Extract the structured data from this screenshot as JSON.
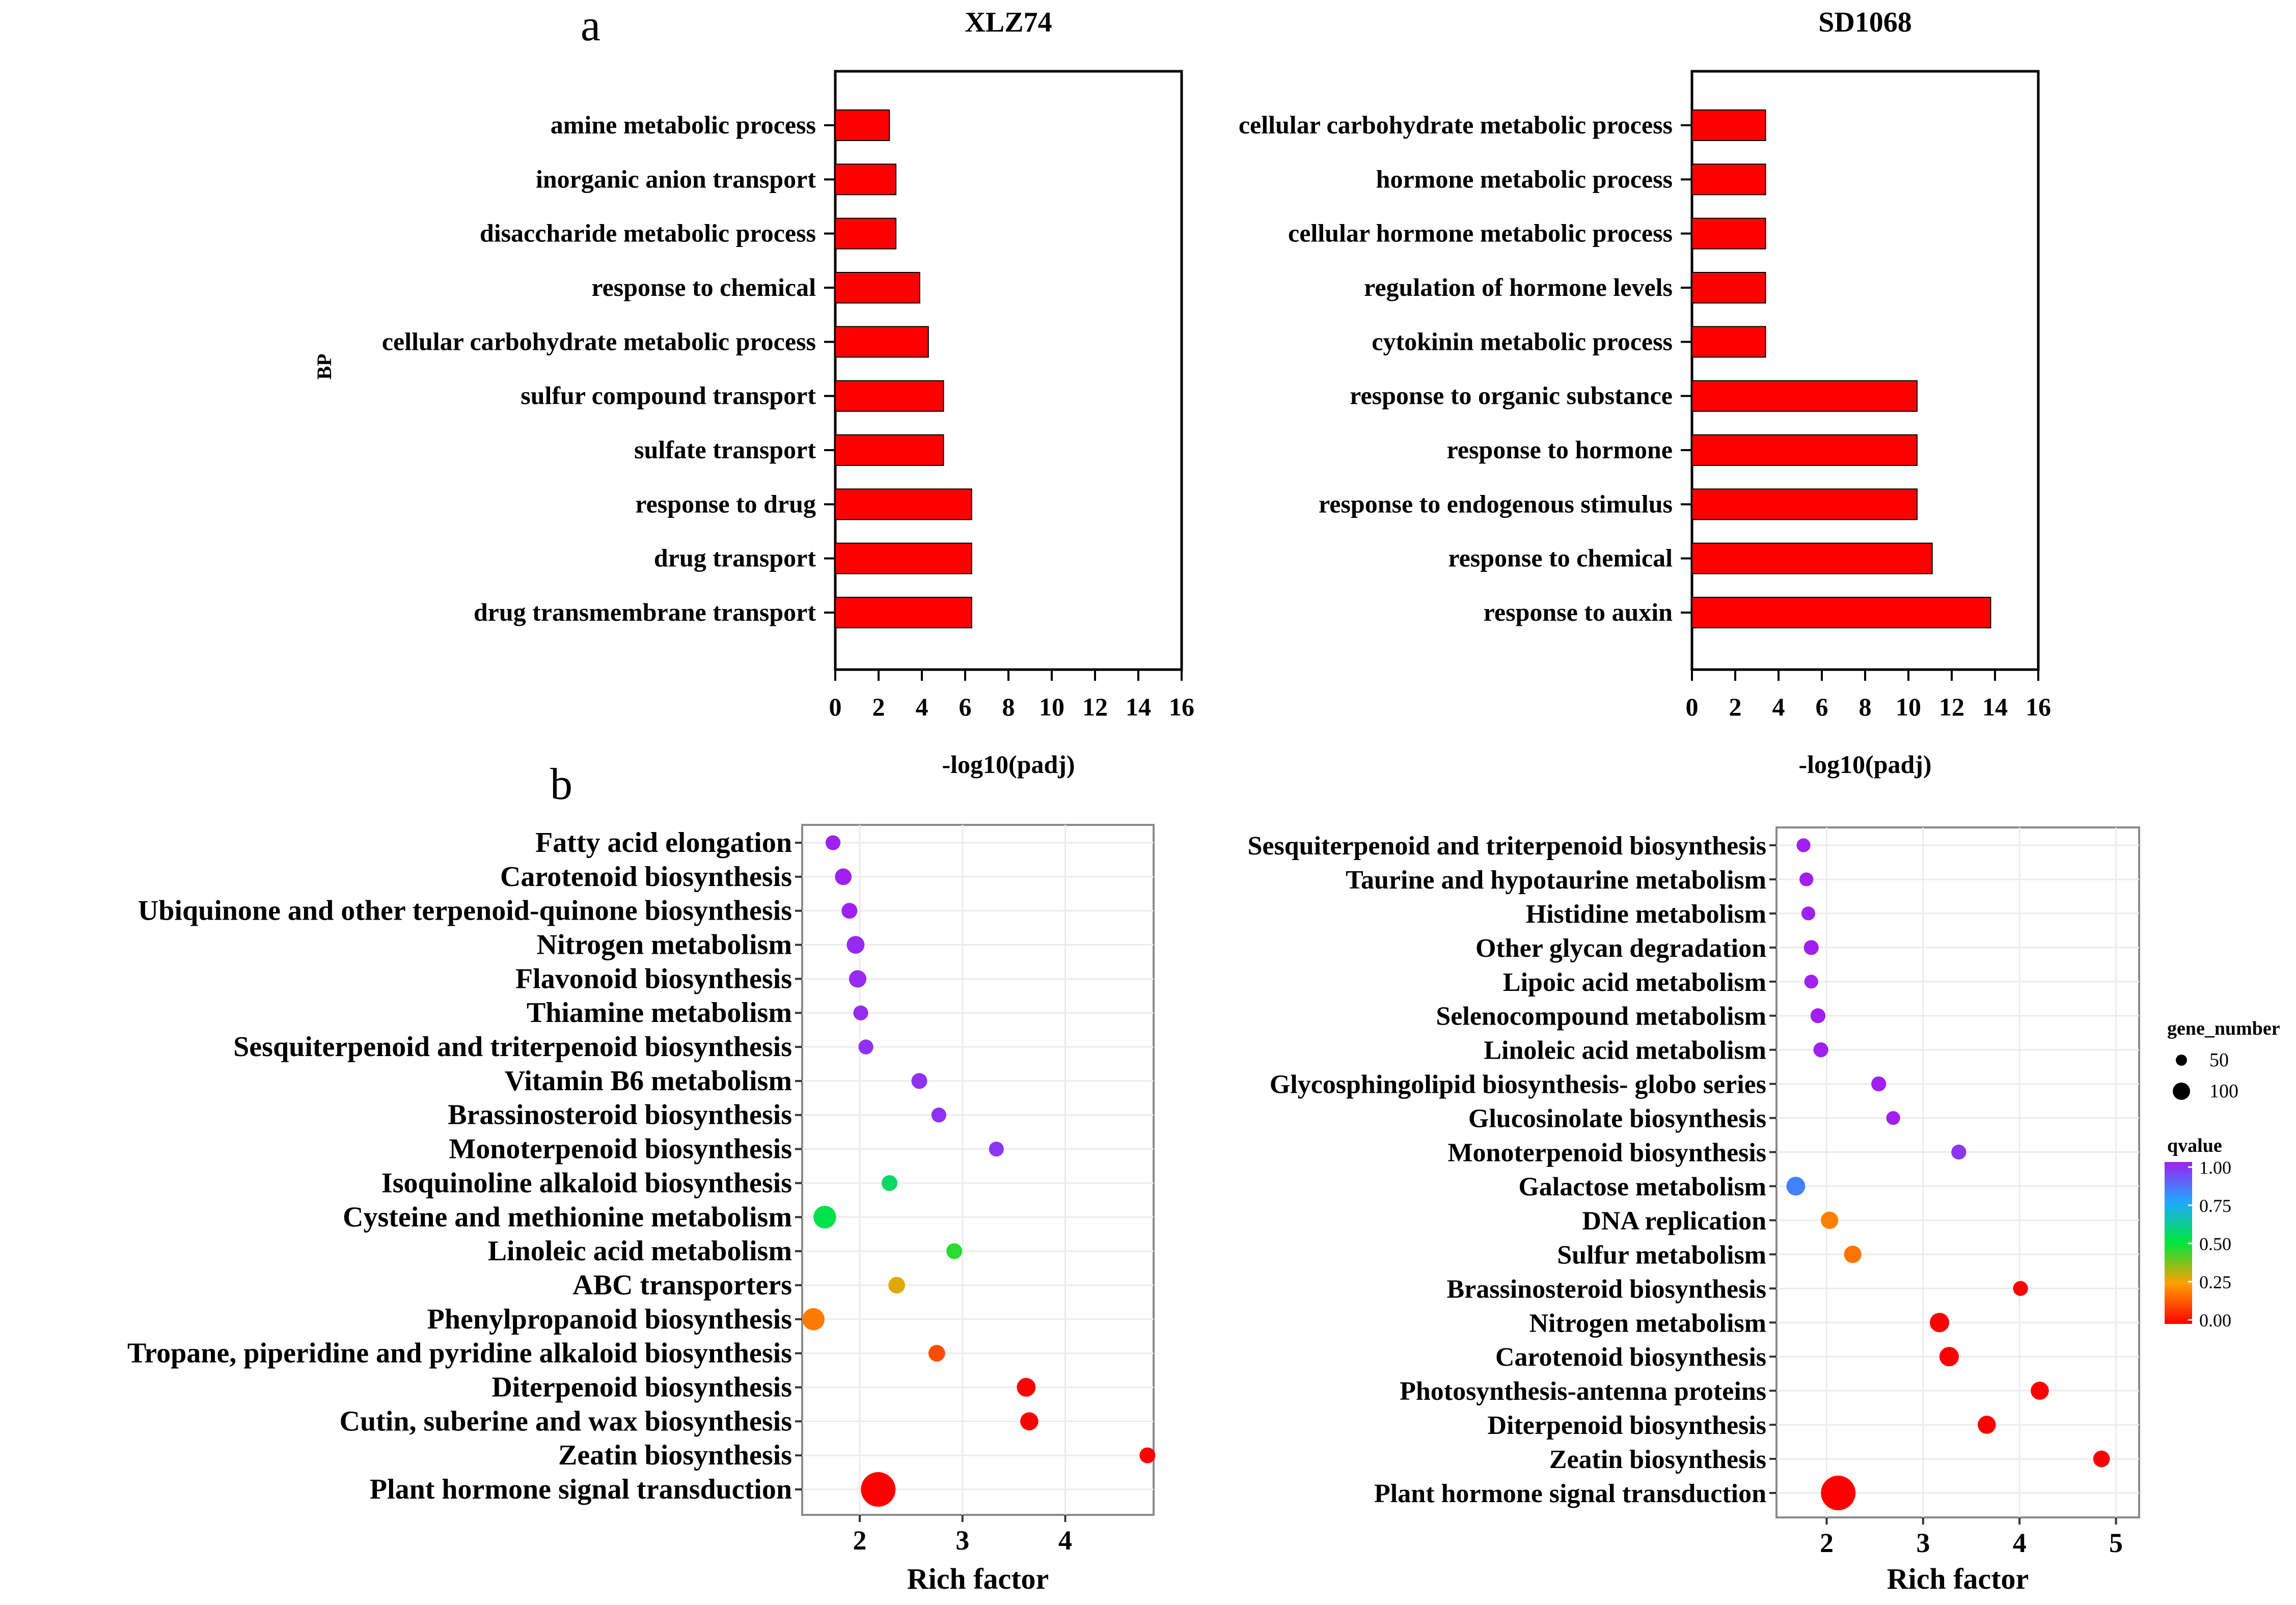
{
  "panels": {
    "a_label": "a",
    "b_label": "b"
  },
  "chart_data": [
    {
      "type": "bar",
      "orientation": "horizontal",
      "title": "XLZ74",
      "ylabel": "BP",
      "xlabel": "-log10(padj)",
      "xlim": [
        0,
        16
      ],
      "xticks": [
        "0",
        "2",
        "4",
        "6",
        "8",
        "10",
        "12",
        "14",
        "16"
      ],
      "categories": [
        "amine metabolic process",
        "inorganic anion transport",
        "disaccharide metabolic process",
        "response to chemical",
        "cellular carbohydrate metabolic process",
        "sulfur compound transport",
        "sulfate transport",
        "response to drug",
        "drug transport",
        "drug transmembrane transport"
      ],
      "values": [
        2.5,
        2.8,
        2.8,
        3.9,
        4.3,
        5.0,
        5.0,
        6.3,
        6.3,
        6.3
      ],
      "bar_color": "#ff0000"
    },
    {
      "type": "bar",
      "orientation": "horizontal",
      "title": "SD1068",
      "xlabel": "-log10(padj)",
      "xlim": [
        0,
        16
      ],
      "xticks": [
        "0",
        "2",
        "4",
        "6",
        "8",
        "10",
        "12",
        "14",
        "16"
      ],
      "categories": [
        "cellular carbohydrate metabolic process",
        "hormone metabolic process",
        "cellular hormone metabolic process",
        "regulation of hormone levels",
        "cytokinin metabolic process",
        "response to organic substance",
        "response to hormone",
        "response to endogenous stimulus",
        "response to chemical",
        "response to auxin"
      ],
      "values": [
        3.4,
        3.4,
        3.4,
        3.4,
        3.4,
        10.4,
        10.4,
        10.4,
        11.1,
        13.8
      ],
      "bar_color": "#ff0000"
    },
    {
      "type": "scatter",
      "xlabel": "Rich factor",
      "xlim": [
        1.44,
        4.86
      ],
      "xticks": [
        "2",
        "3",
        "4"
      ],
      "categories": [
        "Fatty acid elongation",
        "Carotenoid biosynthesis",
        "Ubiquinone and other terpenoid-quinone biosynthesis",
        "Nitrogen metabolism",
        "Flavonoid biosynthesis",
        "Thiamine metabolism",
        "Sesquiterpenoid and triterpenoid biosynthesis",
        "Vitamin B6 metabolism",
        "Brassinosteroid biosynthesis",
        "Monoterpenoid biosynthesis",
        "Isoquinoline alkaloid biosynthesis",
        "Cysteine and methionine metabolism",
        "Linoleic acid metabolism",
        "ABC transporters",
        "Phenylpropanoid biosynthesis",
        "Tropane, piperidine and pyridine alkaloid biosynthesis",
        "Diterpenoid biosynthesis",
        "Cutin, suberine and wax biosynthesis",
        "Zeatin biosynthesis",
        "Plant hormone signal transduction"
      ],
      "x": [
        1.74,
        1.84,
        1.9,
        1.96,
        1.98,
        2.01,
        2.06,
        2.58,
        2.77,
        3.33,
        2.29,
        1.66,
        2.92,
        2.36,
        1.55,
        2.75,
        3.62,
        3.65,
        4.8,
        2.18
      ],
      "gene_number": [
        8,
        12,
        10,
        15,
        14,
        8,
        8,
        10,
        8,
        8,
        10,
        32,
        10,
        12,
        30,
        12,
        18,
        16,
        10,
        100
      ],
      "qvalue": [
        1.0,
        1.0,
        1.0,
        0.98,
        0.98,
        0.98,
        0.97,
        0.97,
        0.97,
        0.96,
        0.55,
        0.52,
        0.46,
        0.28,
        0.19,
        0.12,
        0.0,
        0.0,
        0.0,
        0.0
      ]
    },
    {
      "type": "scatter",
      "xlabel": "Rich factor",
      "xlim": [
        1.48,
        5.24
      ],
      "xticks": [
        "2",
        "3",
        "4",
        "5"
      ],
      "categories": [
        "Sesquiterpenoid and triterpenoid biosynthesis",
        "Taurine and hypotaurine metabolism",
        "Histidine metabolism",
        "Other glycan degradation",
        "Lipoic acid metabolism",
        "Selenocompound metabolism",
        "Linoleic acid metabolism",
        "Glycosphingolipid biosynthesis- globo series",
        "Glucosinolate biosynthesis",
        "Monoterpenoid biosynthesis",
        "Galactose metabolism",
        "DNA replication",
        "Sulfur metabolism",
        "Brassinosteroid biosynthesis",
        "Nitrogen metabolism",
        "Carotenoid biosynthesis",
        "Photosynthesis-antenna proteins",
        "Diterpenoid biosynthesis",
        "Zeatin biosynthesis",
        "Plant hormone signal transduction"
      ],
      "x": [
        1.76,
        1.79,
        1.81,
        1.84,
        1.84,
        1.91,
        1.94,
        2.54,
        2.69,
        3.37,
        1.68,
        2.03,
        2.27,
        4.01,
        3.17,
        3.27,
        4.21,
        3.66,
        4.85,
        2.12
      ],
      "gene_number": [
        6,
        6,
        6,
        8,
        6,
        8,
        8,
        8,
        6,
        8,
        18,
        14,
        14,
        8,
        20,
        20,
        16,
        16,
        12,
        100
      ],
      "qvalue": [
        1.0,
        1.0,
        1.0,
        1.0,
        1.0,
        1.0,
        1.0,
        1.0,
        1.0,
        0.96,
        0.82,
        0.2,
        0.18,
        0.0,
        0.0,
        0.0,
        0.0,
        0.0,
        0.0,
        0.0
      ]
    }
  ],
  "legend": {
    "size_title": "gene_number",
    "size_values": [
      "50",
      "100"
    ],
    "color_title": "qvalue",
    "color_ticks": [
      "1.00",
      "0.75",
      "0.50",
      "0.25",
      "0.00"
    ]
  }
}
